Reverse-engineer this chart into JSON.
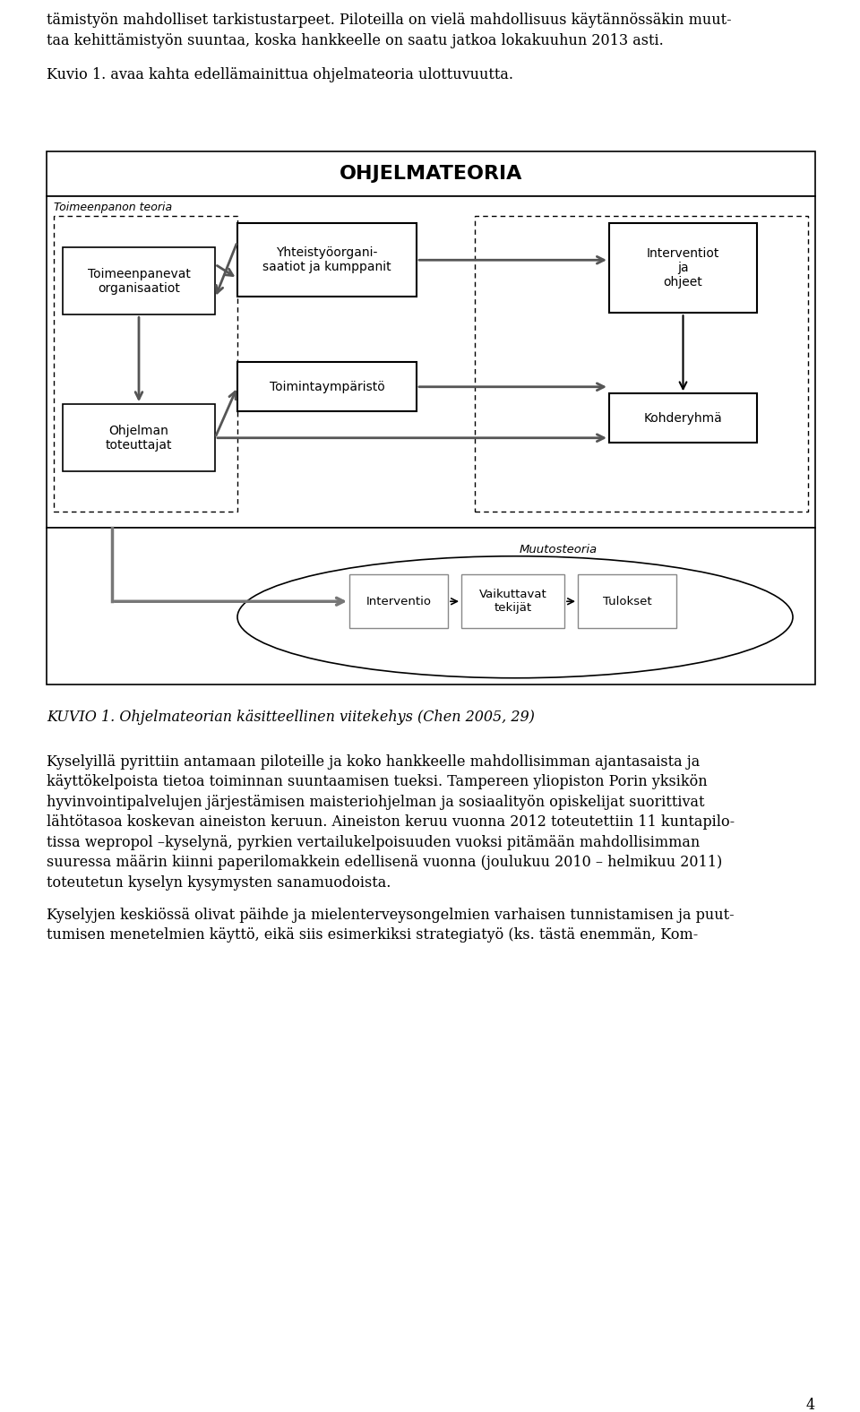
{
  "page_text_top": [
    "tämistyön mahdolliset tarkistustarpeet. Piloteilla on vielä mahdollisuus käytännössäkin muut-",
    "taa kehittämistyön suuntaa, koska hankkeelle on saatu jatkoa lokakuuhun 2013 asti.",
    "",
    "Kuvio 1. avaa kahta edellämainittua ohjelmateoria ulottuvuutta."
  ],
  "caption": "KUVIO 1. Ohjelmateorian käsitteellinen viitekehys (Chen 2005, 29)",
  "page_text_bottom": [
    "Kyselyillä pyrittiin antamaan piloteille ja koko hankkeelle mahdollisimman ajantasaista ja",
    "käyttökelpoista tietoa toiminnan suuntaamisen tueksi. Tampereen yliopiston Porin yksikön",
    "hyvinvointipalvelujen järjestämisen maisteriohjelman ja sosiaalityön opiskelijat suorittivat",
    "lähtötasoa koskevan aineiston keruun. Aineiston keruu vuonna 2012 toteutettiin 11 kuntapilo-",
    "tissa wepropol –kyselynä, pyrkien vertailukelpoisuuden vuoksi pitämään mahdollisimman",
    "suuressa määrin kiinni paperilomakkein edellisenä vuonna (joulukuu 2010 – helmikuu 2011)",
    "toteutetun kyselyn kysymysten sanamuodoista.",
    "",
    "Kyselyjen keskiössä olivat päihde ja mielenterveysongelmien varhaisen tunnistamisen ja puut-",
    "tumisen menetelmien käyttö, eikä siis esimerkiksi strategiatyö (ks. tästä enemmän, Kom-"
  ],
  "bg_color": "#ffffff",
  "text_color": "#000000",
  "page_number": "4"
}
